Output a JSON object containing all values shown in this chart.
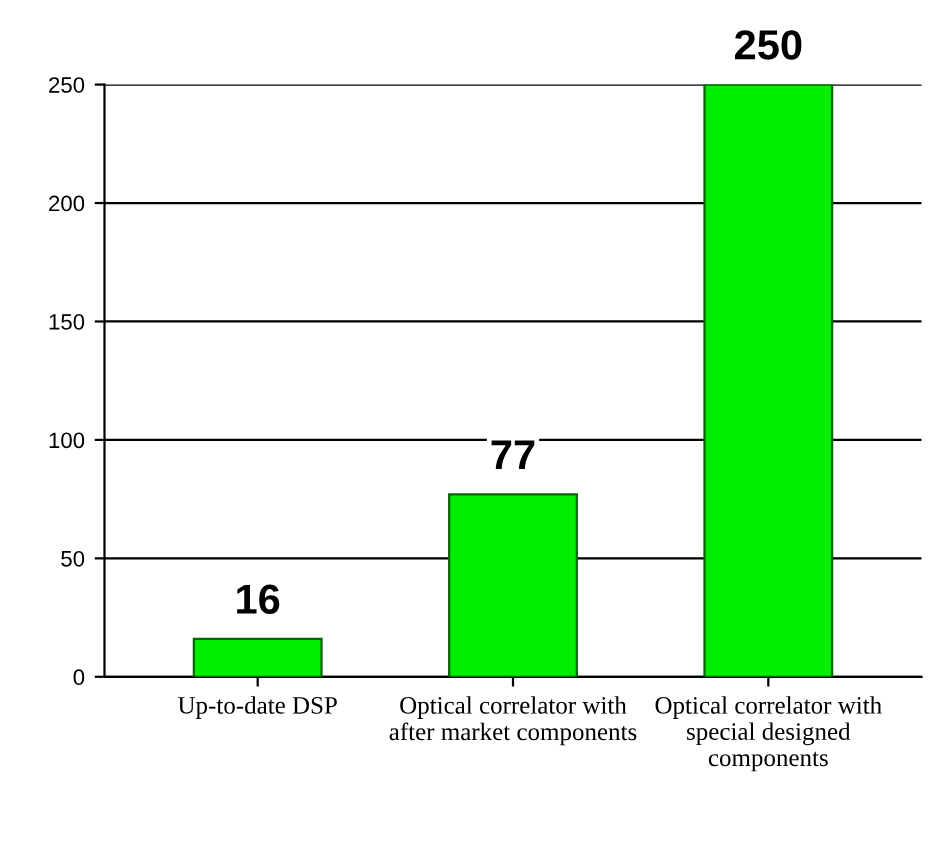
{
  "chart_data": {
    "type": "bar",
    "categories": [
      "Up-to-date DSP",
      "Optical correlator with after market components",
      "Optical correlator with special designed components"
    ],
    "values": [
      16,
      77,
      250
    ],
    "color": "#00ee00",
    "data_labels": true,
    "ylim": [
      0,
      250
    ],
    "yticks": [
      0,
      50,
      100,
      150,
      200,
      250
    ],
    "grid": "y"
  }
}
